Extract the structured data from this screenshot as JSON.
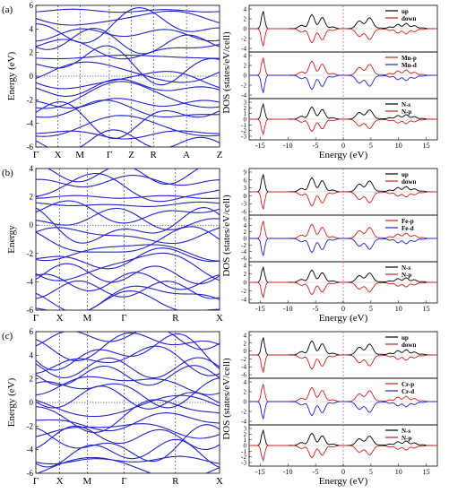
{
  "figure": {
    "rows": [
      {
        "tag": "(a)",
        "band": {
          "ylabel": "Energy (eV)",
          "yticks": [
            "-6",
            "-4",
            "-2",
            "0",
            "2",
            "4",
            "6"
          ],
          "kpoints": [
            "Γ",
            "X",
            "M",
            "Γ",
            "Z",
            "R",
            "A",
            "Z"
          ]
        },
        "dos": {
          "ylabel": "DOS (states/eV/cell)",
          "xlabel": "Energy (eV)",
          "xticks": [
            "-15",
            "-10",
            "-5",
            "0",
            "5",
            "10",
            "15"
          ],
          "panels": [
            {
              "legend": [
                "up",
                "down"
              ],
              "yticks": [
                "4",
                "2",
                "0",
                "-2",
                "-4"
              ]
            },
            {
              "legend": [
                "Mn-p",
                "Mn-d"
              ],
              "yticks": [
                "4",
                "2",
                "0",
                "-2",
                "-4"
              ]
            },
            {
              "legend": [
                "N-s",
                "N-p"
              ],
              "yticks": [
                "3",
                "2",
                "1",
                "0",
                "-1",
                "-2",
                "-3"
              ]
            }
          ]
        }
      },
      {
        "tag": "(b)",
        "band": {
          "ylabel": "Energy",
          "yticks": [
            "-6",
            "-4",
            "-2",
            "0",
            "2",
            "4"
          ],
          "kpoints": [
            "Γ",
            "X",
            "M",
            "Γ",
            "R",
            "X"
          ]
        },
        "dos": {
          "ylabel": "DOS (states/eV/cell)",
          "xlabel": "Energy (eV)",
          "xticks": [
            "-15",
            "-10",
            "-5",
            "0",
            "5",
            "10",
            "15"
          ],
          "panels": [
            {
              "legend": [
                "up",
                "down"
              ],
              "yticks": [
                "9",
                "6",
                "3",
                "0",
                "-3",
                "-6"
              ]
            },
            {
              "legend": [
                "Fe-p",
                "Fe-d"
              ],
              "yticks": [
                "6",
                "4",
                "2",
                "0",
                "-2",
                "-4",
                "-6"
              ]
            },
            {
              "legend": [
                "N-s",
                "N-p"
              ],
              "yticks": [
                "4",
                "2",
                "0",
                "-2",
                "-4"
              ]
            }
          ]
        }
      },
      {
        "tag": "(c)",
        "band": {
          "ylabel": "Energy (eV)",
          "yticks": [
            "-6",
            "-4",
            "-2",
            "0",
            "2",
            "4",
            "6"
          ],
          "kpoints": [
            "Γ",
            "X",
            "M",
            "Γ",
            "R",
            "X"
          ]
        },
        "dos": {
          "ylabel": "DOS (states/eV/cell)",
          "xlabel": "Energy (eV)",
          "xticks": [
            "-15",
            "-10",
            "-5",
            "0",
            "5",
            "10",
            "15"
          ],
          "panels": [
            {
              "legend": [
                "up",
                "down"
              ],
              "yticks": [
                "4",
                "2",
                "0",
                "-2",
                "-4",
                "-6"
              ]
            },
            {
              "legend": [
                "Cr-p",
                "Cr-d"
              ],
              "yticks": [
                "4",
                "2",
                "0",
                "-2",
                "-4"
              ]
            },
            {
              "legend": [
                "N-s",
                "N-p"
              ],
              "yticks": [
                "3",
                "2",
                "1",
                "0",
                "-1",
                "-2",
                "-3"
              ]
            }
          ]
        }
      }
    ],
    "colors": {
      "band_line": "#2222cc",
      "up": "#000000",
      "down": "#cc2222",
      "p": "#cc2222",
      "d": "#2222cc",
      "fermi": "#cc33cc"
    }
  },
  "chart_data": [
    {
      "type": "line",
      "description_free": true,
      "ylabel": "Energy (eV)",
      "ylim": [
        -6,
        6
      ],
      "kpath": [
        "Γ",
        "X",
        "M",
        "Γ",
        "Z",
        "R",
        "A",
        "Z"
      ]
    },
    {
      "type": "line",
      "xlabel": "Energy (eV)",
      "ylabel": "DOS (states/eV/cell)",
      "xlim": [
        -17,
        17
      ],
      "series": [
        {
          "name": "up"
        },
        {
          "name": "down"
        },
        {
          "name": "Mn-p"
        },
        {
          "name": "Mn-d"
        },
        {
          "name": "N-s"
        },
        {
          "name": "N-p"
        }
      ]
    },
    {
      "type": "line",
      "ylabel": "Energy",
      "ylim": [
        -6,
        5
      ],
      "kpath": [
        "Γ",
        "X",
        "M",
        "Γ",
        "R",
        "X"
      ]
    },
    {
      "type": "line",
      "xlabel": "Energy (eV)",
      "ylabel": "DOS (states/eV/cell)",
      "xlim": [
        -17,
        17
      ],
      "series": [
        {
          "name": "up"
        },
        {
          "name": "down"
        },
        {
          "name": "Fe-p"
        },
        {
          "name": "Fe-d"
        },
        {
          "name": "N-s"
        },
        {
          "name": "N-p"
        }
      ]
    },
    {
      "type": "line",
      "ylabel": "Energy (eV)",
      "ylim": [
        -6,
        6
      ],
      "kpath": [
        "Γ",
        "X",
        "M",
        "Γ",
        "R",
        "X"
      ]
    },
    {
      "type": "line",
      "xlabel": "Energy (eV)",
      "ylabel": "DOS (states/eV/cell)",
      "xlim": [
        -17,
        17
      ],
      "series": [
        {
          "name": "up"
        },
        {
          "name": "down"
        },
        {
          "name": "Cr-p"
        },
        {
          "name": "Cr-d"
        },
        {
          "name": "N-s"
        },
        {
          "name": "N-p"
        }
      ]
    }
  ]
}
